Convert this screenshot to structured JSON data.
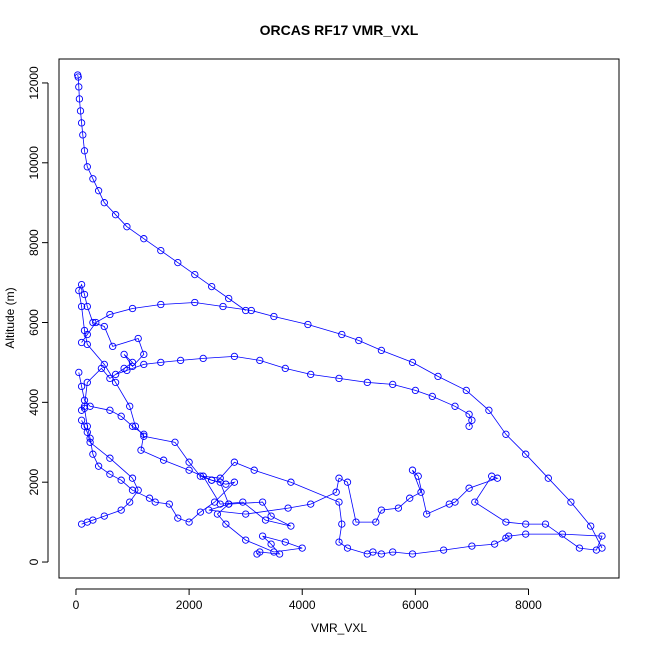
{
  "chart_data": {
    "type": "line",
    "title": "ORCAS RF17 VMR_VXL",
    "xlabel": "VMR_VXL",
    "ylabel": "Altitude (m)",
    "xlim": [
      -300,
      9600
    ],
    "ylim": [
      -400,
      12600
    ],
    "x_ticks": [
      0,
      2000,
      4000,
      6000,
      8000
    ],
    "y_ticks": [
      0,
      2000,
      4000,
      6000,
      8000,
      10000,
      12000
    ],
    "x_tick_labels": [
      "0",
      "2000",
      "4000",
      "6000",
      "8000"
    ],
    "y_tick_labels": [
      "0",
      "2000",
      "4000",
      "6000",
      "8000",
      "10000",
      "12000"
    ],
    "grid": false,
    "legend": "none",
    "series_color": "#0000ff",
    "marker": "open-circle",
    "series": [
      {
        "x": [
          3200,
          3250,
          3600,
          3450,
          3300,
          3700,
          4000,
          3500,
          3000,
          2650,
          2500,
          2700,
          3300,
          3450,
          3800,
          3350,
          2950,
          2550,
          2250,
          2550,
          2800,
          3150,
          3800,
          4650,
          4700,
          4650,
          4800,
          5150,
          5250,
          5400,
          5600,
          5950,
          6500,
          7000,
          7400,
          7600,
          7650,
          7950,
          8600,
          9300,
          9200,
          8900,
          8300,
          7950,
          7600,
          7050,
          7350,
          7450,
          6950,
          6700,
          6600,
          6200,
          6050,
          5950,
          6100,
          5900,
          5700,
          5400,
          5300,
          4950,
          4800,
          4650,
          4600,
          4150,
          3750,
          3000,
          2350,
          2700,
          2550,
          2400,
          2200,
          2000,
          1750,
          1200,
          1050,
          950,
          700,
          500,
          200,
          150,
          100,
          50,
          100,
          150,
          200,
          300,
          500,
          650,
          1100,
          1200,
          1000,
          850,
          1000,
          850,
          600,
          450,
          200,
          150,
          100
        ],
        "y": [
          200,
          250,
          200,
          450,
          650,
          500,
          350,
          250,
          550,
          950,
          1200,
          1450,
          1500,
          1150,
          900,
          1050,
          1500,
          1450,
          2150,
          2100,
          2500,
          2300,
          2000,
          1500,
          950,
          500,
          350,
          200,
          250,
          200,
          250,
          200,
          300,
          400,
          450,
          600,
          650,
          700,
          700,
          650,
          300,
          350,
          950,
          950,
          1000,
          1500,
          2150,
          2100,
          1850,
          1500,
          1450,
          1200,
          2150,
          2300,
          1750,
          1600,
          1350,
          1300,
          1000,
          1000,
          2000,
          2100,
          1750,
          1450,
          1350,
          1200,
          1300,
          1450,
          2000,
          2050,
          2150,
          2500,
          3000,
          3150,
          3400,
          3900,
          4500,
          4950,
          5450,
          5800,
          6400,
          6800,
          6950,
          6700,
          6400,
          6000,
          5900,
          5400,
          5600,
          5200,
          4900,
          5200,
          5000,
          4850,
          4600,
          4850,
          4500,
          3900,
          3800
        ]
      },
      {
        "x": [
          50,
          100,
          150,
          250,
          600,
          800,
          1000,
          1200,
          1150,
          1550,
          2000,
          2400,
          2650,
          2800,
          2450,
          2200,
          2000,
          1800,
          1650,
          1400,
          1300,
          1000,
          800,
          600,
          400,
          300,
          250,
          200,
          150
        ],
        "y": [
          4750,
          4400,
          4050,
          3900,
          3800,
          3650,
          3400,
          3200,
          2800,
          2550,
          2300,
          2050,
          1950,
          2000,
          1500,
          1250,
          1000,
          1100,
          1450,
          1500,
          1600,
          1800,
          2050,
          2200,
          2400,
          2700,
          3100,
          3400,
          3850
        ]
      },
      {
        "x": [
          100,
          150,
          200,
          250,
          600,
          1000,
          1100,
          950,
          800,
          500,
          300,
          200,
          100
        ],
        "y": [
          3550,
          3400,
          3250,
          3000,
          2600,
          2100,
          1800,
          1500,
          1300,
          1150,
          1050,
          1000,
          950
        ]
      },
      {
        "x": [
          700,
          900,
          1200,
          1500,
          1850,
          2250,
          2800,
          3250,
          3700,
          4150,
          4650,
          5150,
          5600,
          6000,
          6300,
          6700,
          6950,
          7000,
          6950
        ],
        "y": [
          4700,
          4800,
          4950,
          5000,
          5050,
          5100,
          5150,
          5050,
          4850,
          4700,
          4600,
          4500,
          4450,
          4300,
          4150,
          3900,
          3700,
          3550,
          3400
        ]
      },
      {
        "x": [
          100,
          200,
          350,
          600,
          1000,
          1500,
          2100,
          2600,
          3100,
          3500,
          4100,
          4700,
          5000,
          5400,
          5950,
          6400,
          6900,
          7300,
          7600,
          7950,
          8350,
          8750,
          9100,
          9300
        ],
        "y": [
          5500,
          5700,
          6000,
          6200,
          6350,
          6450,
          6500,
          6400,
          6300,
          6150,
          5950,
          5700,
          5550,
          5300,
          5000,
          4650,
          4300,
          3800,
          3200,
          2700,
          2100,
          1500,
          900,
          350
        ]
      },
      {
        "x": [
          30,
          40,
          50,
          60,
          80,
          100,
          120,
          150,
          200,
          300,
          400,
          500,
          700,
          900,
          1200,
          1500,
          1800,
          2100,
          2400,
          2700,
          3000
        ],
        "y": [
          12200,
          12150,
          11900,
          11600,
          11300,
          11000,
          10700,
          10300,
          9900,
          9600,
          9300,
          9000,
          8700,
          8400,
          8100,
          7800,
          7500,
          7200,
          6900,
          6600,
          6300
        ]
      }
    ]
  }
}
